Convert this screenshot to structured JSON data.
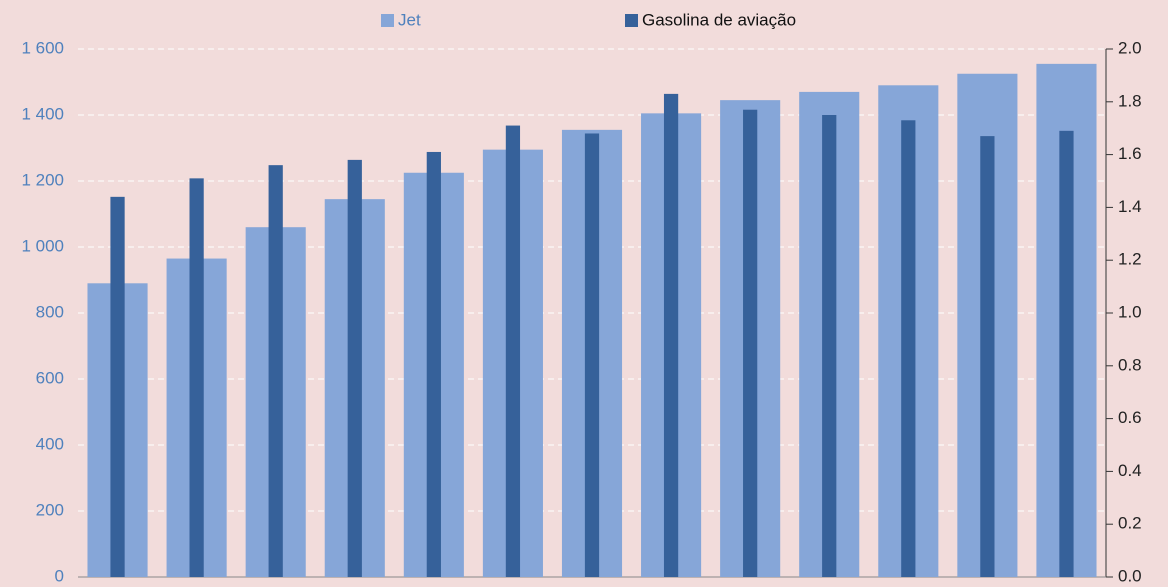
{
  "chart_data": {
    "type": "bar",
    "categories": [
      null,
      null,
      null,
      null,
      null,
      null,
      null,
      null,
      null,
      null,
      null,
      null,
      null
    ],
    "series": [
      {
        "name": "Jet",
        "color": "#86a6d8",
        "values": [
          890,
          965,
          1060,
          1145,
          1225,
          1295,
          1355,
          1405,
          1445,
          1470,
          1490,
          1525,
          1555
        ]
      },
      {
        "name": "Gasolina de aviação",
        "color": "#36619a",
        "axis": "y2",
        "values": [
          1.44,
          1.51,
          1.56,
          1.58,
          1.61,
          1.71,
          1.68,
          1.83,
          1.77,
          1.75,
          1.73,
          1.67,
          1.69
        ]
      }
    ],
    "ylim": [
      0,
      1600
    ],
    "yticks": [
      0,
      200,
      400,
      600,
      800,
      {
        "value": 1000,
        "label": "1 000"
      },
      {
        "value": 1200,
        "label": "1 200"
      },
      {
        "value": 1400,
        "label": "1 400"
      },
      {
        "value": 1600,
        "label": "1 600"
      }
    ],
    "y2lim": [
      0,
      2
    ],
    "y2ticks": [
      {
        "value": 0,
        "label": "0.0"
      },
      {
        "value": 0.2,
        "label": "0.2"
      },
      {
        "value": 0.4,
        "label": "0.4"
      },
      {
        "value": 0.6,
        "label": "0.6"
      },
      {
        "value": 0.8,
        "label": "0.8"
      },
      {
        "value": 1,
        "label": "1.0"
      },
      {
        "value": 1.2,
        "label": "1.2"
      },
      {
        "value": 1.4,
        "label": "1.4"
      },
      {
        "value": 1.6,
        "label": "1.6"
      },
      {
        "value": 1.8,
        "label": "1.8"
      },
      {
        "value": 2,
        "label": "2.0"
      }
    ],
    "grid": true,
    "legend": "top"
  }
}
